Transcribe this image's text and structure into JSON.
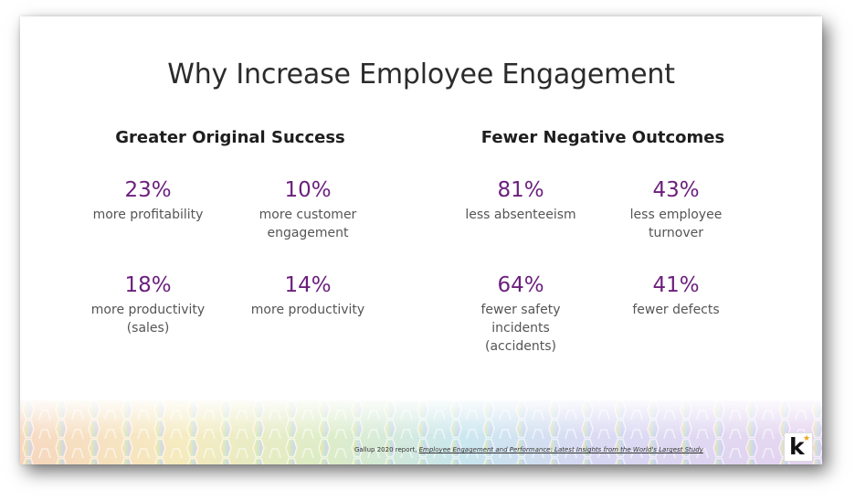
{
  "title": "Why Increase Employee Engagement",
  "left_column": {
    "heading": "Greater Original Success",
    "stats": [
      {
        "value": "23%",
        "label": "more profitability"
      },
      {
        "value": "10%",
        "label": "more customer\nengagement"
      },
      {
        "value": "18%",
        "label": "more productivity\n(sales)"
      },
      {
        "value": "14%",
        "label": "more productivity"
      }
    ]
  },
  "right_column": {
    "heading": "Fewer Negative Outcomes",
    "stats": [
      {
        "value": "81%",
        "label": "less absenteeism"
      },
      {
        "value": "43%",
        "label": "less employee\nturnover"
      },
      {
        "value": "64%",
        "label": "fewer safety\nincidents\n(accidents)"
      },
      {
        "value": "41%",
        "label": "fewer defects"
      }
    ]
  },
  "citation": {
    "prefix": "Gallup 2020 report, ",
    "source": "Employee Engagement and Performance: Latest Insights from the World's Largest Study"
  },
  "logo": {
    "letter": "k",
    "star": "★"
  },
  "colors": {
    "accent": "#6b1f7c",
    "text": "#555555",
    "logo_star": "#f1a21a"
  },
  "icons": [
    "hexagon-pattern",
    "k-logo-icon"
  ]
}
